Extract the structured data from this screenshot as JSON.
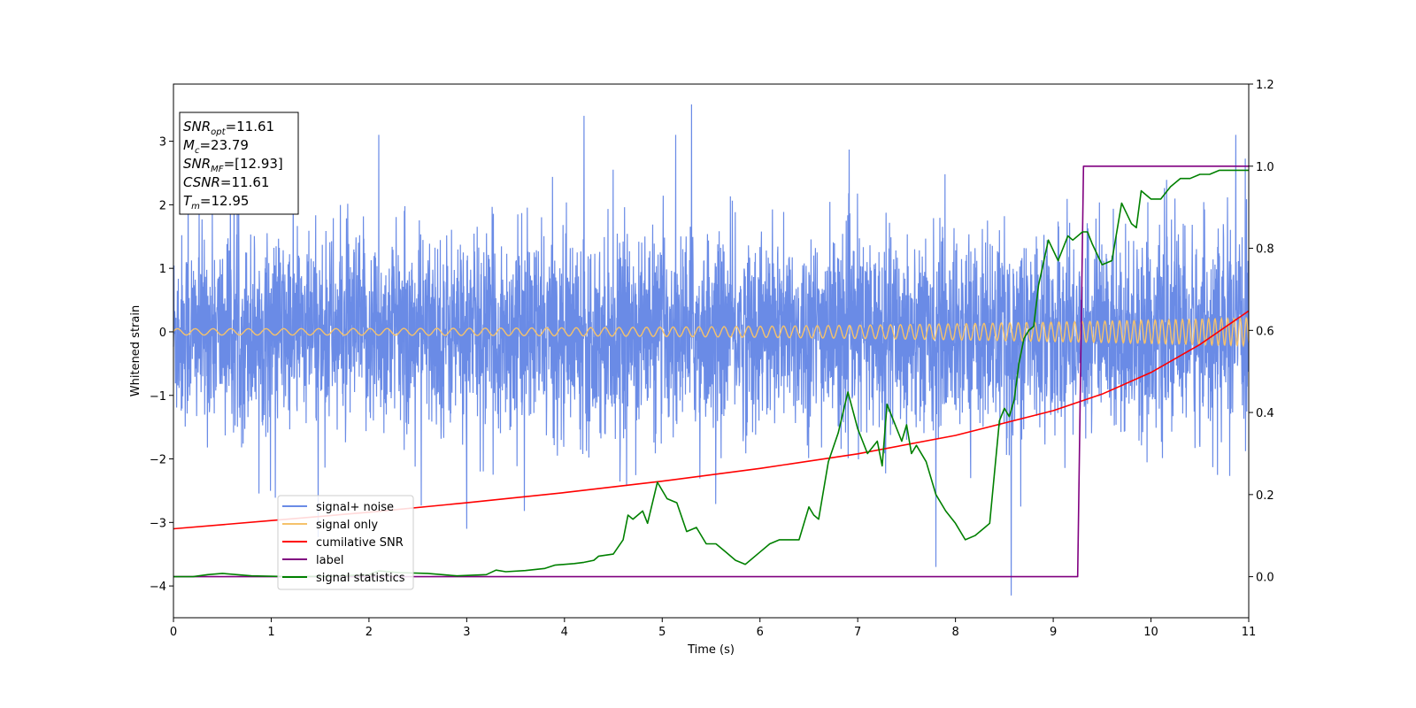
{
  "chart_data": {
    "type": "line",
    "xlabel": "Time (s)",
    "ylabel": "Whitened strain",
    "xlim": [
      0,
      11
    ],
    "ylim": [
      -4.5,
      3.9
    ],
    "y2lim": [
      -0.1,
      1.2
    ],
    "xticks": [
      "0",
      "1",
      "2",
      "3",
      "4",
      "5",
      "6",
      "7",
      "8",
      "9",
      "10",
      "11"
    ],
    "yticks": [
      "3",
      "2",
      "1",
      "0",
      "−1",
      "−2",
      "−3",
      "−4"
    ],
    "y2ticks": [
      "1.2",
      "1.0",
      "0.8",
      "0.6",
      "0.4",
      "0.2",
      "0.0"
    ],
    "legend_position": "lower-left",
    "annotation": [
      {
        "sym": "SNR",
        "sub": "opt",
        "italic": true,
        "value": "=11.61"
      },
      {
        "sym": "M",
        "sub": "c",
        "italic": true,
        "value": "=23.79"
      },
      {
        "sym": "SNR",
        "sub": "MF",
        "italic": true,
        "value": "=[12.93]"
      },
      {
        "sym": "CSNR",
        "sub": "",
        "italic": true,
        "value": "=11.61"
      },
      {
        "sym": "T",
        "sub": "m",
        "italic": true,
        "value": "=12.95"
      }
    ],
    "series": [
      {
        "name": "signal+ noise",
        "color": "#6a8be6",
        "axis": "left",
        "kind": "noise",
        "std": 0.75,
        "extremes": [
          [
            5.3,
            3.58
          ],
          [
            2.1,
            3.1
          ],
          [
            4.2,
            3.4
          ],
          [
            8.57,
            -4.15
          ],
          [
            7.8,
            -3.7
          ],
          [
            3.0,
            -3.1
          ],
          [
            0.15,
            2.5
          ]
        ]
      },
      {
        "name": "signal only",
        "color": "#f5c26b",
        "axis": "left",
        "kind": "chirp",
        "amp_start": 0.05,
        "amp_end": 0.22,
        "f_start": 5.5,
        "f_end": 16
      },
      {
        "name": "cumilative SNR",
        "color": "#ff0000",
        "axis": "left",
        "x": [
          0,
          1,
          2,
          3,
          4,
          5,
          6,
          7,
          8,
          9,
          9.5,
          10,
          10.5,
          11
        ],
        "values": [
          -3.1,
          -2.97,
          -2.84,
          -2.69,
          -2.53,
          -2.35,
          -2.15,
          -1.92,
          -1.63,
          -1.24,
          -0.98,
          -0.64,
          -0.2,
          0.33
        ]
      },
      {
        "name": "label",
        "color": "#800080",
        "axis": "right",
        "x": [
          0,
          9.25,
          9.31,
          11
        ],
        "values": [
          0.0,
          0.0,
          1.0,
          1.0
        ]
      },
      {
        "name": "signal statistics",
        "color": "#008000",
        "axis": "right",
        "x": [
          0,
          0.2,
          0.35,
          0.5,
          0.8,
          1.2,
          1.6,
          2.0,
          2.1,
          2.3,
          2.6,
          2.9,
          3.2,
          3.3,
          3.4,
          3.6,
          3.8,
          3.9,
          4.1,
          4.2,
          4.3,
          4.35,
          4.5,
          4.6,
          4.65,
          4.7,
          4.8,
          4.85,
          4.95,
          5.05,
          5.15,
          5.25,
          5.35,
          5.45,
          5.55,
          5.65,
          5.75,
          5.85,
          6.0,
          6.1,
          6.2,
          6.3,
          6.4,
          6.5,
          6.55,
          6.6,
          6.7,
          6.8,
          6.9,
          7.0,
          7.05,
          7.1,
          7.2,
          7.25,
          7.3,
          7.35,
          7.45,
          7.5,
          7.55,
          7.6,
          7.7,
          7.8,
          7.9,
          8.0,
          8.1,
          8.2,
          8.3,
          8.35,
          8.45,
          8.5,
          8.55,
          8.6,
          8.65,
          8.7,
          8.75,
          8.8,
          8.85,
          8.95,
          9.05,
          9.15,
          9.2,
          9.3,
          9.35,
          9.4,
          9.5,
          9.6,
          9.7,
          9.8,
          9.85,
          9.9,
          10.0,
          10.1,
          10.2,
          10.3,
          10.4,
          10.5,
          10.6,
          10.7,
          10.8,
          10.9,
          11.0
        ],
        "values": [
          0.0,
          0.0,
          0.005,
          0.008,
          0.002,
          0.0,
          0.001,
          0.005,
          0.014,
          0.01,
          0.008,
          0.002,
          0.005,
          0.016,
          0.012,
          0.015,
          0.02,
          0.028,
          0.032,
          0.035,
          0.04,
          0.05,
          0.055,
          0.09,
          0.15,
          0.14,
          0.16,
          0.13,
          0.23,
          0.19,
          0.18,
          0.11,
          0.12,
          0.08,
          0.08,
          0.06,
          0.04,
          0.03,
          0.06,
          0.08,
          0.09,
          0.09,
          0.09,
          0.17,
          0.15,
          0.14,
          0.28,
          0.35,
          0.45,
          0.36,
          0.33,
          0.3,
          0.33,
          0.27,
          0.42,
          0.39,
          0.33,
          0.37,
          0.3,
          0.32,
          0.28,
          0.2,
          0.16,
          0.13,
          0.09,
          0.1,
          0.12,
          0.13,
          0.38,
          0.41,
          0.39,
          0.43,
          0.52,
          0.58,
          0.6,
          0.61,
          0.71,
          0.82,
          0.77,
          0.83,
          0.82,
          0.84,
          0.84,
          0.81,
          0.76,
          0.77,
          0.91,
          0.86,
          0.85,
          0.94,
          0.92,
          0.92,
          0.95,
          0.97,
          0.97,
          0.98,
          0.98,
          0.99,
          0.99,
          0.99,
          0.99
        ]
      }
    ]
  }
}
